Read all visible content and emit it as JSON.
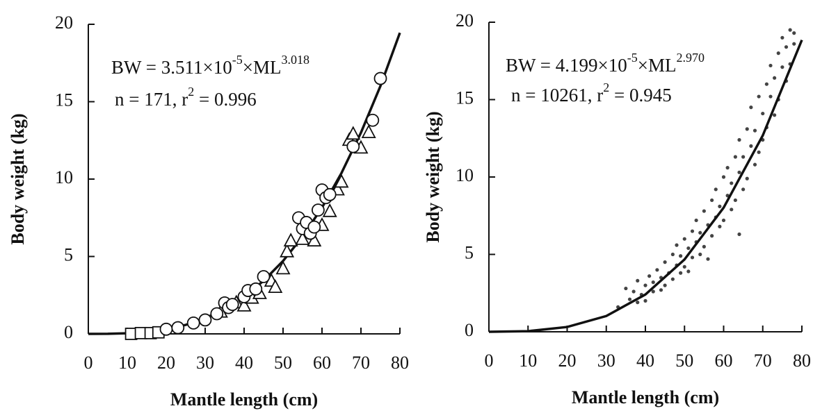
{
  "chart_data": [
    {
      "type": "scatter",
      "xlabel": "Mantle length (cm)",
      "ylabel": "Body weight (kg)",
      "equation": [
        "BW = 3.511×10",
        "-5",
        "×ML",
        "3.018"
      ],
      "stats": [
        "n = 171,  r",
        "2",
        " = 0.996"
      ],
      "xlim": [
        0,
        80
      ],
      "ylim": [
        0,
        20
      ],
      "xticks": [
        0,
        10,
        20,
        30,
        40,
        50,
        60,
        70,
        80
      ],
      "yticks": [
        0,
        5,
        10,
        15,
        20
      ],
      "series": [
        {
          "marker": "line",
          "color": "#111",
          "x": [
            0,
            5,
            10,
            15,
            20,
            25,
            30,
            35,
            40,
            45,
            50,
            55,
            60,
            65,
            70,
            75,
            80
          ],
          "values": [
            0,
            0.0045,
            0.04,
            0.12,
            0.3,
            0.58,
            1.01,
            1.6,
            2.4,
            3.43,
            4.71,
            6.28,
            8.16,
            10.39,
            13.0,
            16.01,
            19.45
          ]
        },
        {
          "marker": "triangle",
          "color": "#111",
          "x": [
            34,
            38,
            40,
            42,
            44,
            47,
            48,
            50,
            51,
            52,
            55,
            58,
            60,
            62,
            64,
            65,
            67,
            68,
            70,
            72
          ],
          "values": [
            1.4,
            2.0,
            1.8,
            2.3,
            2.6,
            3.4,
            3.0,
            4.2,
            5.3,
            6.0,
            6.1,
            6.0,
            7.0,
            7.9,
            9.3,
            9.8,
            12.5,
            12.9,
            12.0,
            13.0
          ]
        },
        {
          "marker": "square",
          "color": "#111",
          "x": [
            11,
            13.5,
            16,
            18
          ],
          "values": [
            0,
            0.05,
            0.05,
            0.1
          ]
        },
        {
          "marker": "circle",
          "color": "#111",
          "x": [
            20,
            23,
            27,
            30,
            33,
            35,
            36,
            37,
            40,
            41,
            43,
            45,
            54,
            55,
            56,
            57,
            58,
            59,
            60,
            61,
            62,
            68,
            73,
            75
          ],
          "values": [
            0.3,
            0.4,
            0.7,
            0.9,
            1.3,
            2.0,
            1.7,
            1.9,
            2.4,
            2.8,
            2.9,
            3.7,
            7.5,
            6.8,
            7.2,
            6.5,
            6.9,
            8.0,
            9.3,
            8.8,
            9.0,
            12.1,
            13.8,
            16.5
          ]
        }
      ]
    },
    {
      "type": "scatter",
      "xlabel": "Mantle length (cm)",
      "ylabel": "Body weight (kg)",
      "equation": [
        "BW = 4.199×10",
        "-5",
        "×ML",
        "2.970"
      ],
      "stats": [
        "n = 10261,  r",
        "2",
        " = 0.945"
      ],
      "xlim": [
        0,
        80
      ],
      "ylim": [
        0,
        20
      ],
      "xticks": [
        0,
        10,
        20,
        30,
        40,
        50,
        60,
        70,
        80
      ],
      "yticks": [
        0,
        5,
        10,
        15,
        20
      ],
      "series": [
        {
          "marker": "dot",
          "color": "#444",
          "x": [
            33,
            35,
            36,
            37,
            38,
            38,
            39,
            40,
            40,
            41,
            42,
            42,
            43,
            44,
            44,
            45,
            45,
            46,
            47,
            47,
            48,
            48,
            49,
            49,
            50,
            50,
            51,
            51,
            52,
            52,
            53,
            53,
            54,
            54,
            55,
            55,
            56,
            56,
            57,
            57,
            58,
            58,
            59,
            59,
            60,
            60,
            61,
            61,
            62,
            62,
            63,
            63,
            64,
            64,
            64,
            65,
            65,
            66,
            66,
            67,
            67,
            68,
            68,
            69,
            69,
            70,
            70,
            71,
            71,
            72,
            72,
            73,
            73,
            74,
            74,
            75,
            75,
            76,
            76,
            77,
            77,
            78,
            78
          ],
          "values": [
            1.6,
            2.8,
            2.1,
            2.6,
            3.3,
            1.9,
            2.4,
            3.0,
            2.0,
            3.6,
            2.6,
            3.2,
            4.0,
            2.7,
            3.5,
            4.5,
            3.0,
            3.8,
            5.0,
            3.4,
            4.3,
            5.6,
            3.8,
            4.9,
            6.0,
            4.2,
            5.4,
            3.9,
            6.5,
            4.8,
            5.8,
            7.2,
            5.0,
            6.4,
            7.8,
            5.5,
            6.9,
            4.7,
            8.5,
            6.2,
            7.4,
            9.2,
            6.8,
            8.1,
            10.0,
            7.2,
            8.8,
            10.6,
            7.9,
            9.6,
            11.3,
            8.5,
            10.3,
            12.4,
            6.3,
            9.2,
            11.3,
            13.1,
            9.9,
            12.0,
            14.5,
            10.8,
            13.0,
            15.2,
            11.6,
            14.1,
            12.4,
            16.0,
            13.2,
            15.2,
            17.2,
            14.0,
            16.4,
            18.0,
            15.0,
            17.1,
            19.0,
            16.2,
            18.4,
            19.5,
            17.3,
            18.6,
            19.3
          ]
        },
        {
          "marker": "line",
          "color": "#111",
          "x": [
            0,
            10,
            20,
            30,
            40,
            50,
            60,
            70,
            80
          ],
          "values": [
            0,
            0.04,
            0.31,
            1.02,
            2.41,
            4.67,
            8.02,
            12.68,
            18.85
          ]
        }
      ]
    }
  ]
}
